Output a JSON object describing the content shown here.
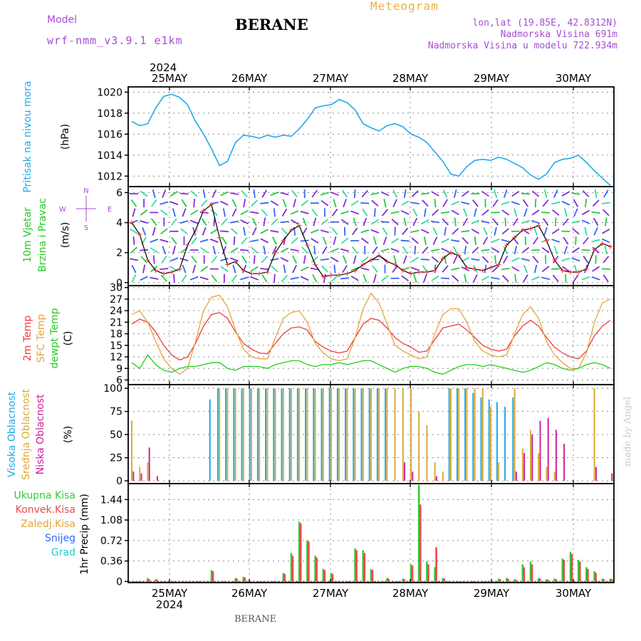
{
  "header": {
    "model_label": "Model",
    "model_value": "wrf-nmm_v3.9.1  e1km",
    "title": "BERANE",
    "meteogram": "Meteogram",
    "lonlat": "lon,lat (19.85E, 42.8312N)",
    "altitude": "Nadmorska Visina 691m",
    "model_altitude": "Nadmorska Visina u modelu 722.934m",
    "footer_station": "BERANE",
    "credit": "made by Angel"
  },
  "time_axis": {
    "year": "2024",
    "day_labels": [
      "25MAY",
      "26MAY",
      "27MAY",
      "28MAY",
      "29MAY",
      "30MAY"
    ]
  },
  "chart_data": [
    {
      "id": "pressure",
      "type": "line",
      "ylabel": [
        "Pritisak na nivou mora",
        "(hPa)"
      ],
      "yticks": [
        1012,
        1014,
        1016,
        1018,
        1020
      ],
      "ylim": [
        1011.0,
        1020.5
      ],
      "color": "#22aaee",
      "series": [
        {
          "name": "Pritisak na nivou mora",
          "values": [
            1017.2,
            1016.8,
            1017.0,
            1018.5,
            1019.6,
            1019.8,
            1019.5,
            1018.8,
            1017.2,
            1016.0,
            1014.6,
            1013.0,
            1013.4,
            1015.2,
            1015.9,
            1015.8,
            1015.6,
            1015.9,
            1015.7,
            1015.9,
            1015.8,
            1016.5,
            1017.4,
            1018.5,
            1018.7,
            1018.8,
            1019.3,
            1019.0,
            1018.3,
            1017.0,
            1016.6,
            1016.3,
            1016.8,
            1017.0,
            1016.7,
            1016.0,
            1015.7,
            1015.2,
            1014.3,
            1013.4,
            1012.2,
            1012.0,
            1012.9,
            1013.5,
            1013.6,
            1013.5,
            1013.8,
            1013.6,
            1013.2,
            1012.8,
            1012.1,
            1011.7,
            1012.2,
            1013.3,
            1013.6,
            1013.7,
            1014.0,
            1013.3,
            1012.5,
            1011.8,
            1011.1
          ]
        }
      ]
    },
    {
      "id": "wind",
      "type": "line",
      "ylabel": [
        "10m Vjetar",
        "Brzina i Pravac",
        "(m/s)"
      ],
      "compass": [
        "N",
        "E",
        "S",
        "W"
      ],
      "yticks": [
        0,
        2,
        4,
        6
      ],
      "ylim": [
        -0.2,
        6.4
      ],
      "series": [
        {
          "name": "10m Vjetar",
          "values": [
            4.0,
            3.2,
            1.5,
            0.8,
            0.6,
            0.7,
            0.9,
            2.5,
            3.5,
            4.8,
            5.2,
            3.0,
            1.2,
            1.4,
            0.8,
            0.6,
            0.6,
            0.7,
            2.0,
            2.8,
            3.5,
            3.8,
            2.5,
            1.2,
            0.4,
            0.5,
            0.5,
            0.6,
            0.8,
            1.2,
            1.5,
            1.8,
            1.4,
            1.2,
            0.8,
            0.6,
            0.7,
            0.7,
            0.8,
            1.6,
            2.0,
            1.8,
            1.0,
            0.9,
            0.8,
            1.0,
            1.2,
            2.5,
            3.0,
            3.5,
            3.6,
            3.8,
            2.8,
            1.5,
            0.8,
            0.7,
            0.7,
            0.9,
            2.2,
            2.6,
            2.4
          ]
        }
      ]
    },
    {
      "id": "temperature",
      "type": "line",
      "ylabel": [
        "2m Temp",
        "SFC Temp",
        "dewpt Temp",
        "(C)"
      ],
      "yticks": [
        6,
        9,
        12,
        15,
        18,
        21,
        24,
        27,
        30
      ],
      "ylim": [
        4.8,
        30.5
      ],
      "series": [
        {
          "name": "2m Temp",
          "color": "#ee3b3b",
          "values": [
            20.5,
            21.8,
            21.0,
            18.5,
            15.0,
            12.5,
            11.2,
            12.0,
            15.5,
            20.0,
            23.0,
            23.5,
            22.0,
            18.5,
            15.5,
            14.0,
            13.0,
            12.8,
            15.5,
            18.0,
            19.5,
            19.8,
            19.0,
            16.0,
            14.5,
            13.5,
            13.0,
            13.5,
            17.0,
            20.5,
            22.0,
            21.5,
            19.5,
            17.0,
            15.5,
            14.5,
            13.2,
            13.5,
            16.5,
            19.5,
            20.0,
            20.5,
            19.0,
            17.0,
            15.0,
            14.0,
            13.5,
            14.0,
            17.5,
            20.0,
            21.5,
            20.0,
            17.0,
            14.5,
            13.0,
            12.0,
            11.5,
            13.5,
            17.5,
            20.0,
            21.5
          ]
        },
        {
          "name": "SFC Temp",
          "color": "#e8a33d",
          "values": [
            23.0,
            24.0,
            21.0,
            16.0,
            11.5,
            9.0,
            7.5,
            9.0,
            16.0,
            24.0,
            27.5,
            28.0,
            25.0,
            19.0,
            14.0,
            12.0,
            11.5,
            11.5,
            17.0,
            22.0,
            23.5,
            24.0,
            21.0,
            15.5,
            13.0,
            11.5,
            11.0,
            11.5,
            17.0,
            24.5,
            28.5,
            26.0,
            20.5,
            15.0,
            13.5,
            12.5,
            11.5,
            12.0,
            18.0,
            23.0,
            24.5,
            24.5,
            21.0,
            16.0,
            13.5,
            12.5,
            12.0,
            12.5,
            18.0,
            23.0,
            25.0,
            22.0,
            16.0,
            12.5,
            10.5,
            9.0,
            9.0,
            13.0,
            21.0,
            26.0,
            27.0
          ]
        },
        {
          "name": "dewpt Temp",
          "color": "#22cc22",
          "values": [
            10.5,
            9.0,
            12.5,
            10.0,
            8.5,
            8.0,
            9.0,
            9.5,
            9.5,
            10.0,
            10.5,
            10.5,
            9.0,
            8.5,
            9.5,
            9.5,
            9.5,
            9.0,
            10.0,
            10.5,
            11.0,
            11.0,
            10.0,
            9.5,
            10.0,
            10.0,
            10.5,
            10.0,
            10.5,
            11.0,
            11.0,
            10.0,
            9.0,
            8.0,
            9.0,
            9.5,
            9.5,
            9.0,
            8.0,
            7.5,
            8.5,
            9.5,
            10.0,
            10.0,
            9.5,
            10.0,
            9.5,
            9.0,
            8.5,
            8.0,
            8.5,
            9.5,
            10.5,
            10.0,
            9.0,
            8.5,
            9.0,
            10.0,
            10.5,
            10.0,
            9.0
          ]
        }
      ]
    },
    {
      "id": "cloudiness",
      "type": "bar",
      "ylabel": [
        "Visoka Oblacnost",
        "Srednja Oblacnost",
        "Niska Oblacnost",
        "(%)"
      ],
      "yticks": [
        0,
        25,
        50,
        75,
        100
      ],
      "ylim": [
        -3,
        104
      ],
      "series": [
        {
          "name": "Visoka Oblacnost",
          "color": "#1ea7e8",
          "values": [
            0,
            0,
            0,
            0,
            0,
            0,
            0,
            0,
            0,
            0,
            88,
            100,
            100,
            100,
            100,
            100,
            100,
            100,
            100,
            100,
            100,
            100,
            100,
            100,
            100,
            100,
            100,
            100,
            100,
            100,
            100,
            100,
            100,
            0,
            0,
            0,
            0,
            0,
            0,
            0,
            100,
            100,
            100,
            95,
            90,
            88,
            85,
            80,
            90,
            0,
            0,
            0,
            0,
            0,
            0,
            0,
            0,
            0,
            0,
            0,
            0
          ]
        },
        {
          "name": "Srednja Oblacnost",
          "color": "#ddaa33",
          "values": [
            65,
            15,
            20,
            0,
            0,
            0,
            0,
            0,
            0,
            0,
            0,
            100,
            100,
            100,
            100,
            100,
            100,
            100,
            100,
            100,
            100,
            100,
            100,
            100,
            100,
            100,
            100,
            100,
            100,
            100,
            100,
            100,
            100,
            100,
            100,
            100,
            75,
            60,
            20,
            10,
            100,
            100,
            100,
            100,
            100,
            80,
            20,
            0,
            100,
            35,
            55,
            30,
            15,
            10,
            0,
            0,
            0,
            0,
            100,
            0,
            0
          ]
        },
        {
          "name": "Niska Oblacnost",
          "color": "#cc2299",
          "values": [
            10,
            8,
            36,
            5,
            0,
            0,
            0,
            0,
            0,
            0,
            0,
            0,
            0,
            0,
            0,
            0,
            0,
            0,
            0,
            0,
            0,
            0,
            0,
            0,
            0,
            0,
            0,
            0,
            0,
            0,
            0,
            0,
            0,
            0,
            20,
            10,
            0,
            0,
            5,
            0,
            0,
            0,
            0,
            0,
            0,
            0,
            0,
            0,
            10,
            30,
            50,
            65,
            68,
            55,
            40,
            0,
            0,
            0,
            15,
            0,
            8
          ]
        }
      ]
    },
    {
      "id": "precip",
      "type": "bar",
      "ylabel": [
        "1hr Precip (mm)"
      ],
      "legend": [
        "Ukupna Kisa",
        "Konvek.Kisa",
        "Zaledj.Kisa",
        "Snijeg",
        "Grad"
      ],
      "yticks": [
        0,
        0.36,
        0.72,
        1.08,
        1.44
      ],
      "ylim": [
        -0.02,
        1.72
      ],
      "series": [
        {
          "name": "Ukupna Kisa",
          "color": "#33cc33",
          "values": [
            0,
            0,
            0.06,
            0.04,
            0,
            0,
            0,
            0,
            0,
            0,
            0.2,
            0,
            0,
            0.06,
            0.08,
            0,
            0,
            0,
            0,
            0.15,
            0.5,
            1.05,
            0.72,
            0.45,
            0.22,
            0.15,
            0,
            0,
            0.58,
            0.55,
            0.22,
            0,
            0.06,
            0,
            0.05,
            0.3,
            1.7,
            0.35,
            0.25,
            0.06,
            0,
            0,
            0,
            0,
            0,
            0,
            0.05,
            0.06,
            0.04,
            0.3,
            0.35,
            0.06,
            0.04,
            0.05,
            0.4,
            0.52,
            0.38,
            0.25,
            0.18,
            0.05,
            0.05
          ]
        },
        {
          "name": "Konvek.Kisa",
          "color": "#e84a4a",
          "values": [
            0,
            0,
            0.04,
            0.03,
            0,
            0,
            0,
            0,
            0,
            0,
            0.18,
            0,
            0,
            0.05,
            0.07,
            0,
            0,
            0,
            0,
            0.13,
            0.45,
            1.02,
            0.7,
            0.42,
            0.2,
            0.13,
            0,
            0,
            0.55,
            0.5,
            0.2,
            0,
            0.05,
            0,
            0.04,
            0.28,
            1.35,
            0.3,
            0.6,
            0.05,
            0,
            0,
            0,
            0,
            0,
            0,
            0.04,
            0.05,
            0.03,
            0.25,
            0.3,
            0.05,
            0.03,
            0.04,
            0.38,
            0.48,
            0.35,
            0.22,
            0.15,
            0.04,
            0.04
          ]
        }
      ]
    }
  ],
  "colors": {
    "frame": "#000000",
    "grid": "#8a8a8a",
    "purple": "#a64dd6",
    "orange": "#e8a33d",
    "blue": "#3366ff",
    "cyan": "#22cccc"
  }
}
